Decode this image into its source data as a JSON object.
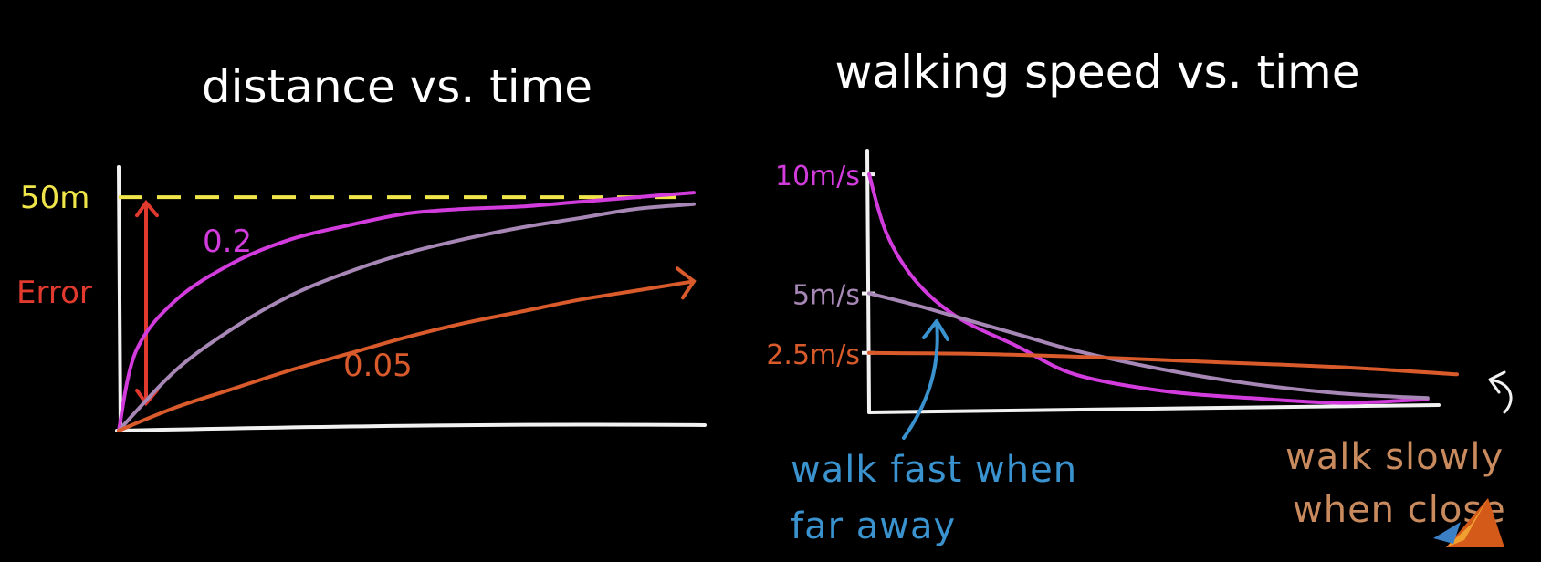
{
  "colors": {
    "background": "#000000",
    "axis": "#f2f2f2",
    "target": "#f0e64a",
    "error": "#e0392e",
    "magenta": "#d23bdc",
    "purple": "#a787b5",
    "orange": "#d95a2b",
    "blue": "#3a93cf",
    "tan": "#c98a5e"
  },
  "chart_data": [
    {
      "type": "line",
      "title": "distance vs. time",
      "xlabel": "",
      "ylabel": "",
      "y_tick_label": "50m",
      "target_value": 50,
      "ylim": [
        0,
        60
      ],
      "xlim": [
        0,
        10
      ],
      "error_label": "Error",
      "series": [
        {
          "name": "0.2",
          "color": "#d23bdc",
          "points": [
            [
              0,
              0
            ],
            [
              0.3,
              17
            ],
            [
              1,
              28
            ],
            [
              2,
              36
            ],
            [
              3,
              41
            ],
            [
              4,
              44
            ],
            [
              5,
              46.5
            ],
            [
              6,
              47.5
            ],
            [
              7,
              48
            ],
            [
              8,
              49
            ],
            [
              9,
              50
            ],
            [
              10,
              51
            ]
          ]
        },
        {
          "name": "",
          "color": "#a787b5",
          "points": [
            [
              0,
              0
            ],
            [
              1,
              13
            ],
            [
              2,
              22
            ],
            [
              3,
              29
            ],
            [
              4,
              34
            ],
            [
              5,
              38
            ],
            [
              6,
              41
            ],
            [
              7,
              43.5
            ],
            [
              8,
              45.5
            ],
            [
              9,
              47.5
            ],
            [
              10,
              48.5
            ]
          ]
        },
        {
          "name": "0.05",
          "color": "#d95a2b",
          "points": [
            [
              0,
              0
            ],
            [
              1,
              5
            ],
            [
              2,
              9
            ],
            [
              3,
              13
            ],
            [
              4,
              16.5
            ],
            [
              5,
              20
            ],
            [
              6,
              23
            ],
            [
              7,
              25.5
            ],
            [
              8,
              28
            ],
            [
              9,
              30
            ],
            [
              10,
              32
            ]
          ]
        }
      ]
    },
    {
      "type": "line",
      "title": "walking speed vs. time",
      "xlabel": "",
      "ylabel": "",
      "ylim": [
        0,
        11
      ],
      "xlim": [
        0,
        10
      ],
      "y_tick_labels": [
        "10m/s",
        "5m/s",
        "2.5m/s"
      ],
      "y_tick_values": [
        10,
        5,
        2.5
      ],
      "series": [
        {
          "name": "",
          "color": "#d23bdc",
          "points": [
            [
              0,
              10
            ],
            [
              0.3,
              7.5
            ],
            [
              0.8,
              5.5
            ],
            [
              1.5,
              4
            ],
            [
              2.5,
              2.8
            ],
            [
              3.5,
              1.6
            ],
            [
              5,
              0.9
            ],
            [
              6.5,
              0.6
            ],
            [
              8,
              0.4
            ],
            [
              9.5,
              0.55
            ]
          ]
        },
        {
          "name": "",
          "color": "#a787b5",
          "points": [
            [
              0,
              5
            ],
            [
              0.8,
              4.5
            ],
            [
              1.5,
              4
            ],
            [
              2.5,
              3.3
            ],
            [
              3.5,
              2.6
            ],
            [
              5,
              1.8
            ],
            [
              6.5,
              1.2
            ],
            [
              8,
              0.8
            ],
            [
              9.5,
              0.6
            ]
          ]
        },
        {
          "name": "",
          "color": "#d95a2b",
          "points": [
            [
              0,
              2.5
            ],
            [
              2,
              2.45
            ],
            [
              4,
              2.3
            ],
            [
              6,
              2.1
            ],
            [
              8,
              1.9
            ],
            [
              10,
              1.6
            ]
          ]
        }
      ],
      "annotations": {
        "fast_line1": "walk fast when",
        "fast_line2": "far away",
        "slow_line1": "walk slowly",
        "slow_line2": "when close"
      }
    }
  ]
}
